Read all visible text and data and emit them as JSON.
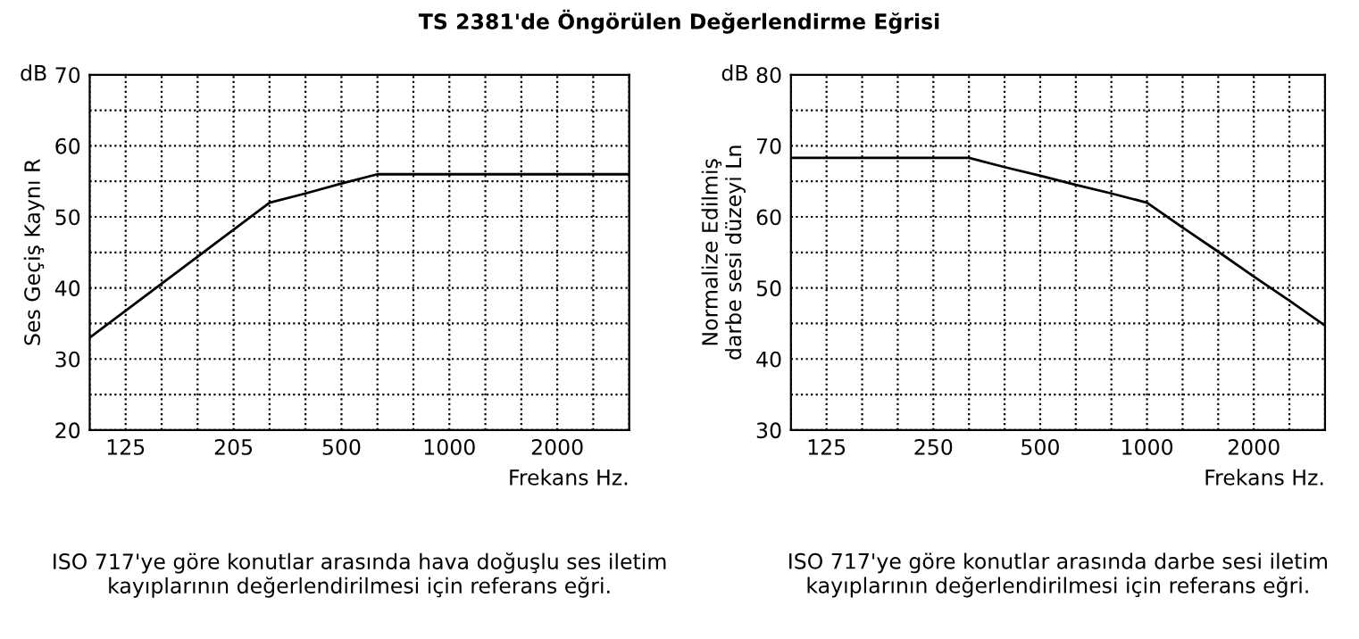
{
  "chart_data": [
    {
      "type": "line",
      "title": "TS 2381'de Öngörülen Değerlendirme Eğrisi",
      "ylabel": "Ses Geçiş Kaynı R",
      "xlabel": "Frekans Hz.",
      "categories": [
        null,
        "125",
        null,
        null,
        "205",
        null,
        null,
        "500",
        null,
        null,
        "1000",
        null,
        null,
        "2000",
        null,
        null
      ],
      "series": [
        {
          "color": "#000000",
          "values": [
            33,
            36.8,
            40.6,
            44.4,
            48.2,
            52,
            53.3,
            54.7,
            56,
            56,
            56,
            56,
            56,
            56,
            56,
            56
          ]
        }
      ],
      "ylim": [
        20,
        70
      ],
      "yticks": [
        20,
        {
          "value": 25,
          "label": null
        },
        30,
        {
          "value": 35,
          "label": null
        },
        40,
        {
          "value": 45,
          "label": null
        },
        50,
        {
          "value": 55,
          "label": null
        },
        60,
        {
          "value": 65,
          "label": null
        },
        70
      ],
      "grid": true,
      "marker": "none",
      "line_style": "solid",
      "annotations": [
        "dB",
        "ISO 717'ye göre konutlar arasında hava doğuşlu ses iletim kayıplarının değerlendirilmesi için referans eğri."
      ]
    },
    {
      "type": "line",
      "ylabel": "Normalize Edilmiş\ndarbe sesi düzeyi Ln",
      "xlabel": "Frekans Hz.",
      "categories": [
        null,
        "125",
        null,
        null,
        "250",
        null,
        null,
        "500",
        null,
        null,
        "1000",
        null,
        null,
        "2000",
        null,
        null
      ],
      "series": [
        {
          "color": "#000000",
          "values": [
            68.3,
            68.3,
            68.3,
            68.3,
            68.3,
            68.3,
            67,
            65.8,
            64.5,
            63.3,
            62,
            58.5,
            55.1,
            51.6,
            48.2,
            44.7
          ]
        }
      ],
      "ylim": [
        30,
        80
      ],
      "yticks": [
        30,
        {
          "value": 35,
          "label": null
        },
        40,
        {
          "value": 45,
          "label": null
        },
        50,
        {
          "value": 55,
          "label": null
        },
        60,
        {
          "value": 65,
          "label": null
        },
        70,
        {
          "value": 75,
          "label": null
        },
        80
      ],
      "grid": true,
      "marker": "none",
      "line_style": "solid",
      "annotations": [
        "dB",
        "ISO 717'ye göre konutlar arasında darbe sesi iletim kayıplarının değerlendirilmesi için referans eğri."
      ]
    }
  ]
}
